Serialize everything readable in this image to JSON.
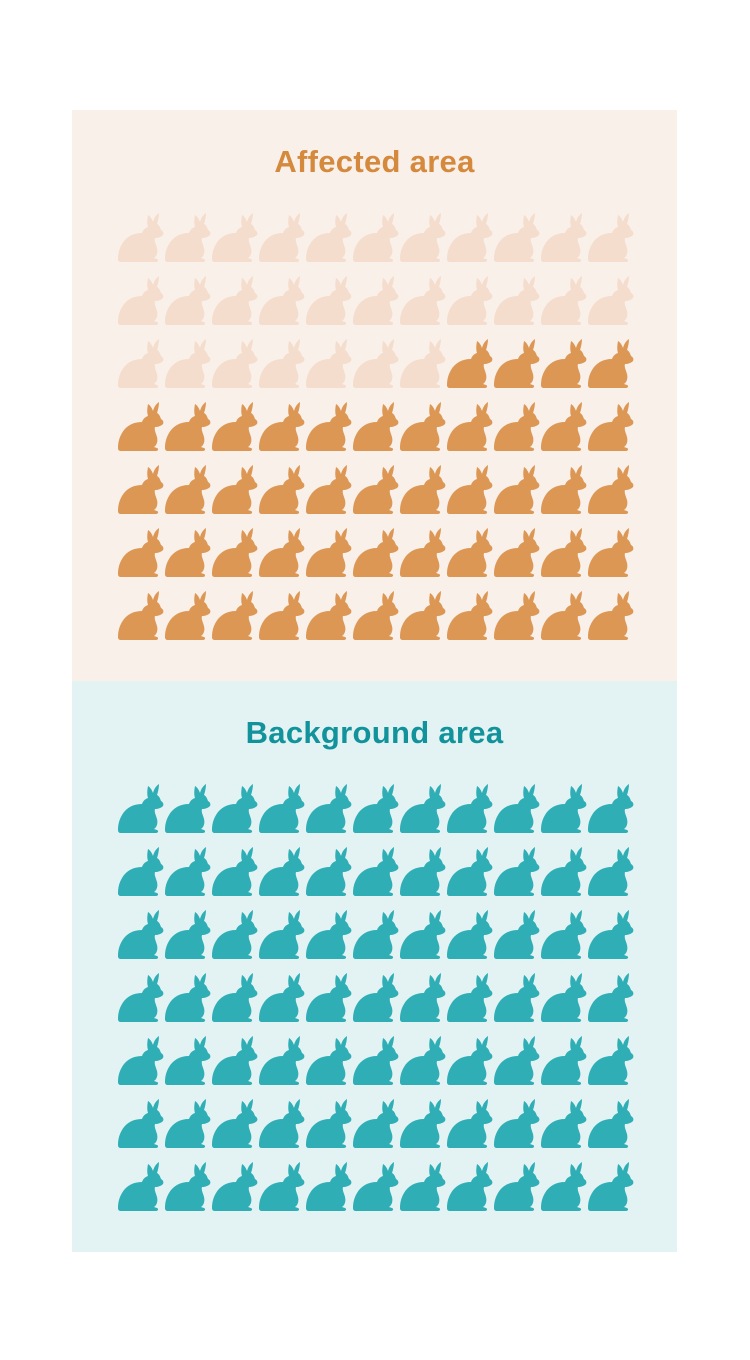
{
  "panels": [
    {
      "id": "affected",
      "title": "Affected area",
      "background": "#faf0ea",
      "title_color": "#d4893c",
      "icon": "rabbit-icon",
      "grid": {
        "rows": 7,
        "cols": 11
      },
      "total_icons": 77,
      "highlighted_icons": 48,
      "faded_icons": 29,
      "highlight_color": "#dc9755",
      "faded_color": "#f4ddcc"
    },
    {
      "id": "background",
      "title": "Background area",
      "background": "#e3f3f4",
      "title_color": "#12939c",
      "icon": "rabbit-icon",
      "grid": {
        "rows": 7,
        "cols": 11
      },
      "total_icons": 77,
      "highlighted_icons": 77,
      "faded_icons": 0,
      "highlight_color": "#2faeb6",
      "faded_color": "#cbe9eb"
    }
  ]
}
